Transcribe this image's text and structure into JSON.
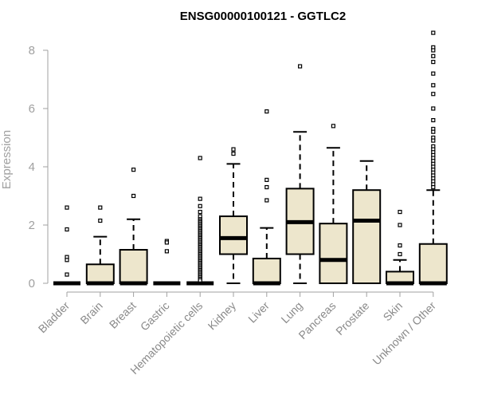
{
  "chart_data": {
    "type": "boxplot",
    "title": "ENSG00000100121 - GGTLC2",
    "xlabel": "",
    "ylabel": "Expression",
    "ylim": [
      0,
      8.6
    ],
    "yticks": [
      0,
      2,
      4,
      6,
      8
    ],
    "grid": false,
    "box_fill": "#ede6cc",
    "box_stroke": "#000000",
    "axis_color": "#a0a0a0",
    "categories": [
      "Bladder",
      "Brain",
      "Breast",
      "Gastric",
      "Hematopoietic cells",
      "Kidney",
      "Liver",
      "Lung",
      "Pancreas",
      "Prostate",
      "Skin",
      "Unknown / Other"
    ],
    "boxes": [
      {
        "q1": 0,
        "median": 0,
        "q3": 0,
        "whisker_low": 0,
        "whisker_high": 0,
        "outliers": [
          2.6,
          1.85,
          0.9,
          0.8,
          0.3
        ]
      },
      {
        "q1": 0,
        "median": 0,
        "q3": 0.65,
        "whisker_low": 0,
        "whisker_high": 1.6,
        "outliers": [
          2.6,
          2.15
        ]
      },
      {
        "q1": 0,
        "median": 0,
        "q3": 1.15,
        "whisker_low": 0,
        "whisker_high": 2.2,
        "outliers": [
          3.9,
          3.0
        ]
      },
      {
        "q1": 0,
        "median": 0,
        "q3": 0,
        "whisker_low": 0,
        "whisker_high": 0,
        "outliers": [
          1.45,
          1.4,
          1.1
        ]
      },
      {
        "q1": 0,
        "median": 0,
        "q3": 0,
        "whisker_low": 0,
        "whisker_high": 0,
        "outliers": [
          4.3,
          2.9,
          2.65,
          2.45,
          2.3,
          2.2,
          2.15,
          2.1,
          2.05,
          2.0,
          1.95,
          1.9,
          1.85,
          1.8,
          1.75,
          1.7,
          1.65,
          1.6,
          1.55,
          1.5,
          1.45,
          1.4,
          1.35,
          1.3,
          1.25,
          1.2,
          1.15,
          1.1,
          1.05,
          1.0,
          0.95,
          0.9,
          0.85,
          0.8,
          0.75,
          0.7,
          0.65,
          0.6,
          0.55,
          0.5,
          0.45,
          0.4,
          0.35,
          0.3,
          0.25,
          0.2,
          0.15,
          0.1
        ]
      },
      {
        "q1": 1.0,
        "median": 1.55,
        "q3": 2.3,
        "whisker_low": 0,
        "whisker_high": 4.1,
        "outliers": [
          4.6,
          4.45
        ]
      },
      {
        "q1": 0,
        "median": 0,
        "q3": 0.85,
        "whisker_low": 0,
        "whisker_high": 1.9,
        "outliers": [
          5.9,
          3.55,
          3.3,
          2.85
        ]
      },
      {
        "q1": 1.0,
        "median": 2.1,
        "q3": 3.25,
        "whisker_low": 0,
        "whisker_high": 5.2,
        "outliers": [
          7.45
        ]
      },
      {
        "q1": 0,
        "median": 0.8,
        "q3": 2.05,
        "whisker_low": 0,
        "whisker_high": 4.65,
        "outliers": [
          5.4
        ]
      },
      {
        "q1": 0,
        "median": 2.15,
        "q3": 3.2,
        "whisker_low": 0,
        "whisker_high": 4.2,
        "outliers": []
      },
      {
        "q1": 0,
        "median": 0,
        "q3": 0.4,
        "whisker_low": 0,
        "whisker_high": 0.8,
        "outliers": [
          2.45,
          2.0,
          1.3,
          1.0
        ]
      },
      {
        "q1": 0,
        "median": 0,
        "q3": 1.35,
        "whisker_low": 0,
        "whisker_high": 3.2,
        "outliers": [
          8.6,
          8.1,
          8.0,
          7.8,
          7.6,
          7.2,
          6.8,
          6.5,
          6.0,
          5.6,
          5.3,
          5.2,
          5.0,
          4.9,
          4.7,
          4.6,
          4.5,
          4.4,
          4.3,
          4.2,
          4.1,
          4.0,
          3.9,
          3.8,
          3.7,
          3.6,
          3.5,
          3.4,
          3.3
        ]
      }
    ]
  }
}
